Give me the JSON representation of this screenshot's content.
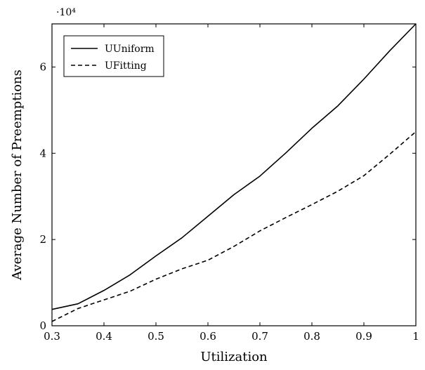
{
  "chart_data": {
    "type": "line",
    "xlabel": "Utilization",
    "ylabel": "Average Number of Preemptions",
    "y_multiplier_text": "·10⁴",
    "xlim": [
      0.3,
      1.0
    ],
    "ylim": [
      0,
      70000
    ],
    "x_ticks": [
      0.3,
      0.4,
      0.5,
      0.6,
      0.7,
      0.8,
      0.9,
      1.0
    ],
    "x_tick_labels": [
      "0.3",
      "0.4",
      "0.5",
      "0.6",
      "0.7",
      "0.8",
      "0.9",
      "1"
    ],
    "y_ticks": [
      0,
      20000,
      40000,
      60000
    ],
    "y_tick_labels": [
      "0",
      "2",
      "4",
      "6"
    ],
    "grid": false,
    "legend_position": "top-left",
    "x": [
      0.3,
      0.35,
      0.4,
      0.45,
      0.5,
      0.55,
      0.6,
      0.65,
      0.7,
      0.75,
      0.8,
      0.85,
      0.9,
      0.95,
      1.0
    ],
    "series": [
      {
        "name": "UUniform",
        "style": "solid",
        "color": "#000000",
        "values": [
          3800,
          5100,
          8200,
          11800,
          16200,
          20400,
          25400,
          30400,
          34700,
          40100,
          45800,
          51000,
          57200,
          63800,
          70000
        ]
      },
      {
        "name": "UFitting",
        "style": "dashed",
        "color": "#000000",
        "values": [
          1000,
          4000,
          6000,
          8000,
          10800,
          13200,
          15200,
          18400,
          22000,
          25100,
          28100,
          31200,
          34800,
          39800,
          45000
        ]
      }
    ]
  }
}
